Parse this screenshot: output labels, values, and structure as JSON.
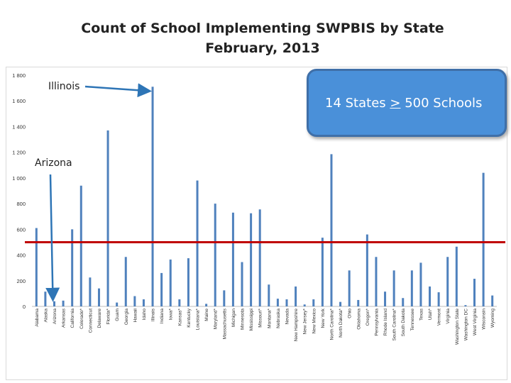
{
  "title": {
    "line1": "Count of School Implementing SWPBIS by State",
    "line2": "February, 2013"
  },
  "callout": {
    "prefix": "14 States ",
    "symbol": ">",
    "suffix": " 500 Schools"
  },
  "annotations": {
    "illinois": "Illinois",
    "arizona": "Arizona"
  },
  "colors": {
    "bar": "#4f81bd",
    "threshold_line": "#c00000",
    "callout_fill": "#4a90d9",
    "arrow": "#2e75b6"
  },
  "chart_data": {
    "type": "bar",
    "title": "Count of School Implementing SWPBIS by State February, 2013",
    "xlabel": "",
    "ylabel": "",
    "ylim": [
      0,
      1800
    ],
    "yticks": [
      0,
      200,
      400,
      600,
      800,
      1000,
      1200,
      1400,
      1600,
      1800
    ],
    "ytick_labels": [
      "0",
      "200",
      "400",
      "600",
      "800",
      "1 000",
      "1 200",
      "1 400",
      "1 600",
      "1 800"
    ],
    "grid": false,
    "threshold": 500,
    "categories": [
      "Alabama",
      "Alaska",
      "Arizona",
      "Arkansas",
      "California",
      "Colorado*",
      "Connecticut",
      "Delaware",
      "Florida*",
      "Guam",
      "Georgia",
      "Hawaii",
      "Idaho",
      "Illinois",
      "Indiana",
      "Iowa*",
      "Kansas*",
      "Kentucky",
      "Louisiana*",
      "Maine",
      "Maryland*",
      "Massachusetts",
      "Michigan",
      "Minnesota",
      "Mississippi",
      "Missouri*",
      "Montana*",
      "Nebraska",
      "Nevada",
      "New Hampshire",
      "New Jersey*",
      "New Mexico",
      "New York",
      "North Carolina*",
      "North Dakota*",
      "Ohio",
      "Oklahoma",
      "Oregon*",
      "Pennsylvania",
      "Rhode Island",
      "South Carolina*",
      "South Dakota",
      "Tennessee",
      "Texas",
      "Utah*",
      "Vermont",
      "Virginia",
      "Washington State",
      "Washington DC",
      "West Virginia",
      "Wisconsin",
      "Wyoming"
    ],
    "values": [
      610,
      115,
      40,
      45,
      600,
      940,
      225,
      140,
      1370,
      30,
      385,
      80,
      55,
      1710,
      260,
      365,
      55,
      375,
      980,
      20,
      800,
      125,
      730,
      345,
      725,
      755,
      170,
      60,
      55,
      155,
      15,
      55,
      535,
      1185,
      35,
      280,
      50,
      560,
      385,
      115,
      280,
      65,
      280,
      340,
      155,
      110,
      385,
      465,
      10,
      215,
      1040,
      85
    ]
  }
}
